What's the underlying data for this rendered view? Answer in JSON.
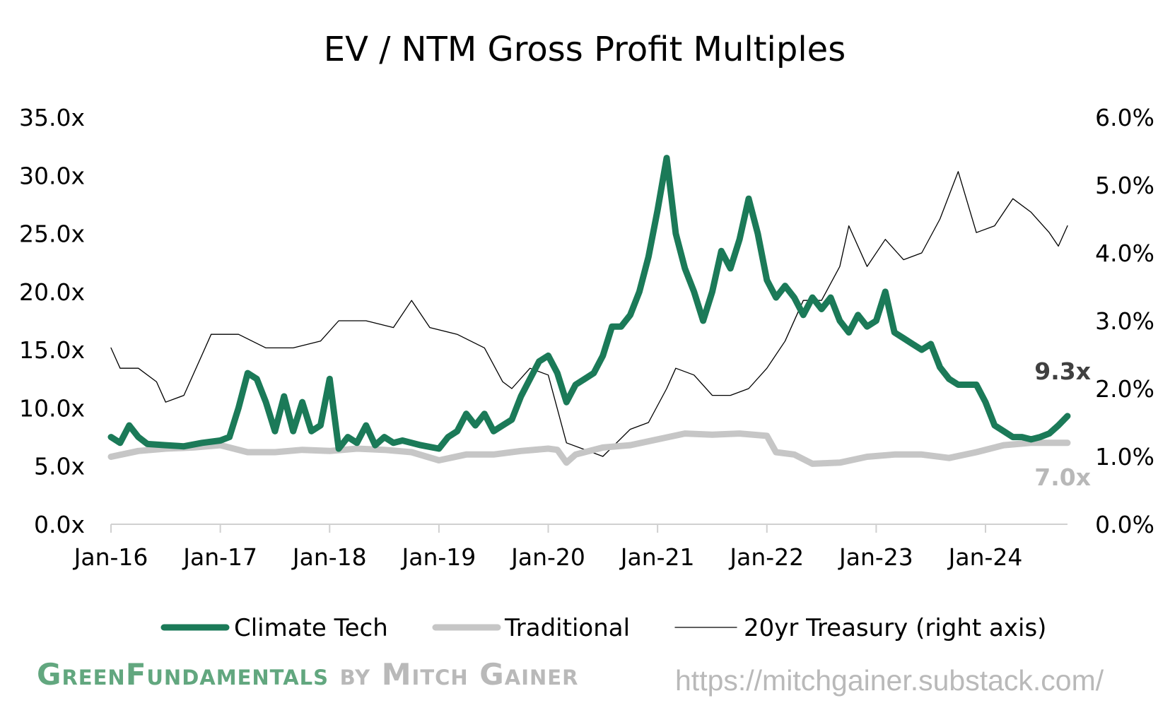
{
  "chart_data": {
    "type": "line",
    "title": "EV / NTM Gross Profit Multiples",
    "x_ticks": [
      "Jan-16",
      "Jan-17",
      "Jan-18",
      "Jan-19",
      "Jan-20",
      "Jan-21",
      "Jan-22",
      "Jan-23",
      "Jan-24"
    ],
    "x_range": [
      "2016-01",
      "2024-10"
    ],
    "y_left": {
      "ticks": [
        "0.0x",
        "5.0x",
        "10.0x",
        "15.0x",
        "20.0x",
        "25.0x",
        "30.0x",
        "35.0x"
      ],
      "range": [
        0,
        35
      ]
    },
    "y_right": {
      "ticks": [
        "0.0%",
        "1.0%",
        "2.0%",
        "3.0%",
        "4.0%",
        "5.0%",
        "6.0%"
      ],
      "range": [
        0,
        6
      ]
    },
    "legend_position": "bottom",
    "series": [
      {
        "name": "Climate Tech",
        "axis": "left",
        "color": "#1b7a58",
        "stroke": "thick",
        "end_label": "9.3x",
        "points": [
          [
            "2016-01",
            7.5
          ],
          [
            "2016-02",
            7.0
          ],
          [
            "2016-03",
            8.5
          ],
          [
            "2016-04",
            7.5
          ],
          [
            "2016-05",
            6.9
          ],
          [
            "2016-07",
            6.8
          ],
          [
            "2016-09",
            6.7
          ],
          [
            "2016-11",
            7.0
          ],
          [
            "2017-01",
            7.2
          ],
          [
            "2017-02",
            7.5
          ],
          [
            "2017-03",
            10.0
          ],
          [
            "2017-04",
            13.0
          ],
          [
            "2017-05",
            12.5
          ],
          [
            "2017-06",
            10.5
          ],
          [
            "2017-07",
            8.0
          ],
          [
            "2017-08",
            11.0
          ],
          [
            "2017-09",
            8.0
          ],
          [
            "2017-10",
            10.5
          ],
          [
            "2017-11",
            8.0
          ],
          [
            "2017-12",
            8.5
          ],
          [
            "2018-01",
            12.5
          ],
          [
            "2018-02",
            6.5
          ],
          [
            "2018-03",
            7.5
          ],
          [
            "2018-04",
            7.0
          ],
          [
            "2018-05",
            8.5
          ],
          [
            "2018-06",
            6.8
          ],
          [
            "2018-07",
            7.5
          ],
          [
            "2018-08",
            7.0
          ],
          [
            "2018-09",
            7.2
          ],
          [
            "2018-11",
            6.8
          ],
          [
            "2019-01",
            6.5
          ],
          [
            "2019-02",
            7.5
          ],
          [
            "2019-03",
            8.0
          ],
          [
            "2019-04",
            9.5
          ],
          [
            "2019-05",
            8.5
          ],
          [
            "2019-06",
            9.5
          ],
          [
            "2019-07",
            8.0
          ],
          [
            "2019-08",
            8.5
          ],
          [
            "2019-09",
            9.0
          ],
          [
            "2019-10",
            11.0
          ],
          [
            "2019-11",
            12.5
          ],
          [
            "2019-12",
            14.0
          ],
          [
            "2020-01",
            14.5
          ],
          [
            "2020-02",
            13.0
          ],
          [
            "2020-03",
            10.5
          ],
          [
            "2020-04",
            12.0
          ],
          [
            "2020-05",
            12.5
          ],
          [
            "2020-06",
            13.0
          ],
          [
            "2020-07",
            14.5
          ],
          [
            "2020-08",
            17.0
          ],
          [
            "2020-09",
            17.0
          ],
          [
            "2020-10",
            18.0
          ],
          [
            "2020-11",
            20.0
          ],
          [
            "2020-12",
            23.0
          ],
          [
            "2021-01",
            27.0
          ],
          [
            "2021-02",
            31.5
          ],
          [
            "2021-03",
            25.0
          ],
          [
            "2021-04",
            22.0
          ],
          [
            "2021-05",
            20.0
          ],
          [
            "2021-06",
            17.5
          ],
          [
            "2021-07",
            20.0
          ],
          [
            "2021-08",
            23.5
          ],
          [
            "2021-09",
            22.0
          ],
          [
            "2021-10",
            24.5
          ],
          [
            "2021-11",
            28.0
          ],
          [
            "2021-12",
            25.0
          ],
          [
            "2022-01",
            21.0
          ],
          [
            "2022-02",
            19.5
          ],
          [
            "2022-03",
            20.5
          ],
          [
            "2022-04",
            19.5
          ],
          [
            "2022-05",
            18.0
          ],
          [
            "2022-06",
            19.5
          ],
          [
            "2022-07",
            18.5
          ],
          [
            "2022-08",
            19.5
          ],
          [
            "2022-09",
            17.5
          ],
          [
            "2022-10",
            16.5
          ],
          [
            "2022-11",
            18.0
          ],
          [
            "2022-12",
            17.0
          ],
          [
            "2023-01",
            17.5
          ],
          [
            "2023-02",
            20.0
          ],
          [
            "2023-03",
            16.5
          ],
          [
            "2023-04",
            16.0
          ],
          [
            "2023-05",
            15.5
          ],
          [
            "2023-06",
            15.0
          ],
          [
            "2023-07",
            15.5
          ],
          [
            "2023-08",
            13.5
          ],
          [
            "2023-09",
            12.5
          ],
          [
            "2023-10",
            12.0
          ],
          [
            "2023-11",
            12.0
          ],
          [
            "2023-12",
            12.0
          ],
          [
            "2024-01",
            10.5
          ],
          [
            "2024-02",
            8.5
          ],
          [
            "2024-03",
            8.0
          ],
          [
            "2024-04",
            7.5
          ],
          [
            "2024-05",
            7.5
          ],
          [
            "2024-06",
            7.3
          ],
          [
            "2024-07",
            7.5
          ],
          [
            "2024-08",
            7.8
          ],
          [
            "2024-09",
            8.5
          ],
          [
            "2024-10",
            9.3
          ]
        ]
      },
      {
        "name": "Traditional",
        "axis": "left",
        "color": "#c6c6c6",
        "stroke": "thick",
        "end_label": "7.0x",
        "points": [
          [
            "2016-01",
            5.8
          ],
          [
            "2016-04",
            6.3
          ],
          [
            "2016-07",
            6.5
          ],
          [
            "2016-10",
            6.6
          ],
          [
            "2017-01",
            6.8
          ],
          [
            "2017-04",
            6.2
          ],
          [
            "2017-07",
            6.2
          ],
          [
            "2017-10",
            6.4
          ],
          [
            "2018-01",
            6.3
          ],
          [
            "2018-04",
            6.5
          ],
          [
            "2018-07",
            6.4
          ],
          [
            "2018-10",
            6.2
          ],
          [
            "2019-01",
            5.5
          ],
          [
            "2019-04",
            6.0
          ],
          [
            "2019-07",
            6.0
          ],
          [
            "2019-10",
            6.3
          ],
          [
            "2020-01",
            6.5
          ],
          [
            "2020-02",
            6.4
          ],
          [
            "2020-03",
            5.3
          ],
          [
            "2020-04",
            6.0
          ],
          [
            "2020-07",
            6.6
          ],
          [
            "2020-10",
            6.8
          ],
          [
            "2021-01",
            7.3
          ],
          [
            "2021-04",
            7.8
          ],
          [
            "2021-07",
            7.7
          ],
          [
            "2021-10",
            7.8
          ],
          [
            "2022-01",
            7.6
          ],
          [
            "2022-02",
            6.2
          ],
          [
            "2022-04",
            6.0
          ],
          [
            "2022-06",
            5.2
          ],
          [
            "2022-09",
            5.3
          ],
          [
            "2022-12",
            5.8
          ],
          [
            "2023-03",
            6.0
          ],
          [
            "2023-06",
            6.0
          ],
          [
            "2023-09",
            5.7
          ],
          [
            "2023-12",
            6.2
          ],
          [
            "2024-03",
            6.8
          ],
          [
            "2024-06",
            7.0
          ],
          [
            "2024-10",
            7.0
          ]
        ]
      },
      {
        "name": "20yr Treasury (right axis)",
        "axis": "right",
        "color": "#000000",
        "stroke": "thin",
        "points": [
          [
            "2016-01",
            2.6
          ],
          [
            "2016-02",
            2.3
          ],
          [
            "2016-04",
            2.3
          ],
          [
            "2016-06",
            2.1
          ],
          [
            "2016-07",
            1.8
          ],
          [
            "2016-09",
            1.9
          ],
          [
            "2016-11",
            2.5
          ],
          [
            "2016-12",
            2.8
          ],
          [
            "2017-03",
            2.8
          ],
          [
            "2017-06",
            2.6
          ],
          [
            "2017-09",
            2.6
          ],
          [
            "2017-12",
            2.7
          ],
          [
            "2018-02",
            3.0
          ],
          [
            "2018-05",
            3.0
          ],
          [
            "2018-08",
            2.9
          ],
          [
            "2018-10",
            3.3
          ],
          [
            "2018-12",
            2.9
          ],
          [
            "2019-03",
            2.8
          ],
          [
            "2019-06",
            2.6
          ],
          [
            "2019-08",
            2.1
          ],
          [
            "2019-09",
            2.0
          ],
          [
            "2019-11",
            2.3
          ],
          [
            "2020-01",
            2.2
          ],
          [
            "2020-03",
            1.2
          ],
          [
            "2020-05",
            1.1
          ],
          [
            "2020-07",
            1.0
          ],
          [
            "2020-10",
            1.4
          ],
          [
            "2020-12",
            1.5
          ],
          [
            "2021-02",
            2.0
          ],
          [
            "2021-03",
            2.3
          ],
          [
            "2021-05",
            2.2
          ],
          [
            "2021-07",
            1.9
          ],
          [
            "2021-09",
            1.9
          ],
          [
            "2021-11",
            2.0
          ],
          [
            "2022-01",
            2.3
          ],
          [
            "2022-03",
            2.7
          ],
          [
            "2022-05",
            3.3
          ],
          [
            "2022-07",
            3.3
          ],
          [
            "2022-09",
            3.8
          ],
          [
            "2022-10",
            4.4
          ],
          [
            "2022-12",
            3.8
          ],
          [
            "2023-02",
            4.2
          ],
          [
            "2023-04",
            3.9
          ],
          [
            "2023-06",
            4.0
          ],
          [
            "2023-08",
            4.5
          ],
          [
            "2023-10",
            5.2
          ],
          [
            "2023-12",
            4.3
          ],
          [
            "2024-02",
            4.4
          ],
          [
            "2024-04",
            4.8
          ],
          [
            "2024-06",
            4.6
          ],
          [
            "2024-08",
            4.3
          ],
          [
            "2024-09",
            4.1
          ],
          [
            "2024-10",
            4.4
          ]
        ]
      }
    ]
  },
  "footer": {
    "brand_green": "GreenFundamentals",
    "brand_by": " by Mitch Gainer",
    "url": "https://mitchgainer.substack.com/"
  }
}
